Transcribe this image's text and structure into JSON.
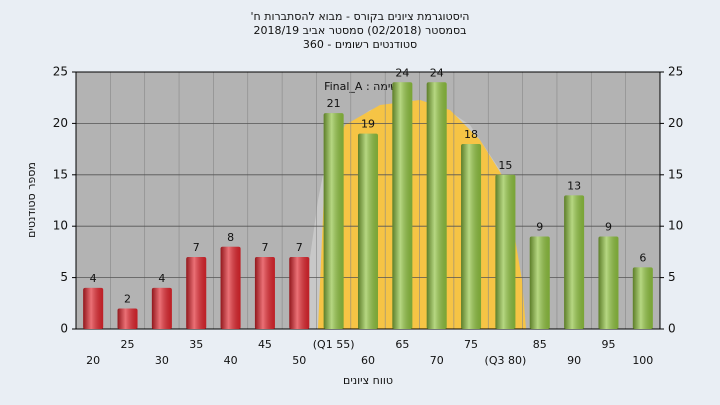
{
  "chart_data": {
    "type": "bar",
    "title": [
      "היסטוגרמת ציונים בקורס - מבוא להסתברות ח'",
      "בסמסטר (02/2018) סמסטר אביב 2018/19",
      "סטודנטים רשומים - 360"
    ],
    "annotation": "במשימה : Final_A",
    "ylabel": "מספר סטודנטים",
    "xlabel": "טווח ציונים",
    "categories": [
      "20",
      "25",
      "30",
      "35",
      "40",
      "45",
      "50",
      "(Q1 55)",
      "60",
      "65",
      "70",
      "75",
      "(Q3 80)",
      "85",
      "90",
      "95",
      "100"
    ],
    "values": [
      4,
      2,
      4,
      7,
      8,
      7,
      7,
      21,
      19,
      24,
      24,
      18,
      15,
      9,
      13,
      9,
      6
    ],
    "colors": [
      "#e0242c",
      "#e0242c",
      "#e0242c",
      "#e0242c",
      "#e0242c",
      "#e0242c",
      "#e0242c",
      "#8fc23f",
      "#8fc23f",
      "#8fc23f",
      "#8fc23f",
      "#8fc23f",
      "#8fc23f",
      "#8fc23f",
      "#8fc23f",
      "#8fc23f",
      "#8fc23f"
    ],
    "ylim": [
      0,
      25
    ],
    "yticks": [
      0,
      5,
      10,
      15,
      20,
      25
    ],
    "y2lim": [
      0,
      25
    ],
    "y2ticks": [
      0,
      5,
      10,
      15,
      20,
      25
    ],
    "grid": true
  }
}
